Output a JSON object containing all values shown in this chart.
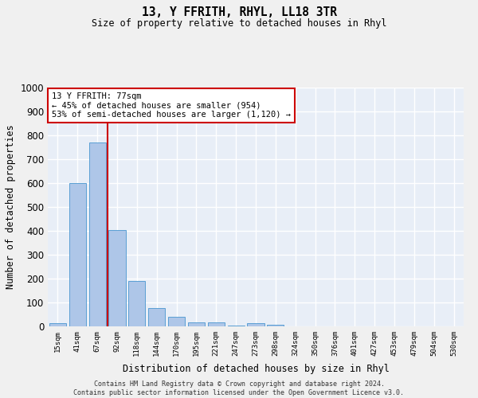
{
  "title": "13, Y FFRITH, RHYL, LL18 3TR",
  "subtitle": "Size of property relative to detached houses in Rhyl",
  "xlabel": "Distribution of detached houses by size in Rhyl",
  "ylabel": "Number of detached properties",
  "categories": [
    "15sqm",
    "41sqm",
    "67sqm",
    "92sqm",
    "118sqm",
    "144sqm",
    "170sqm",
    "195sqm",
    "221sqm",
    "247sqm",
    "273sqm",
    "298sqm",
    "324sqm",
    "350sqm",
    "376sqm",
    "401sqm",
    "427sqm",
    "453sqm",
    "479sqm",
    "504sqm",
    "530sqm"
  ],
  "values": [
    15,
    600,
    770,
    405,
    190,
    77,
    40,
    18,
    16,
    5,
    13,
    8,
    0,
    0,
    0,
    0,
    0,
    0,
    0,
    0,
    0
  ],
  "bar_color": "#aec6e8",
  "bar_edge_color": "#5a9fd4",
  "vline_x": 2.5,
  "vline_color": "#cc0000",
  "annotation_text": "13 Y FFRITH: 77sqm\n← 45% of detached houses are smaller (954)\n53% of semi-detached houses are larger (1,120) →",
  "annotation_box_color": "#cc0000",
  "ylim": [
    0,
    1000
  ],
  "yticks": [
    0,
    100,
    200,
    300,
    400,
    500,
    600,
    700,
    800,
    900,
    1000
  ],
  "background_color": "#e8eef7",
  "grid_color": "#ffffff",
  "footer": "Contains HM Land Registry data © Crown copyright and database right 2024.\nContains public sector information licensed under the Open Government Licence v3.0."
}
